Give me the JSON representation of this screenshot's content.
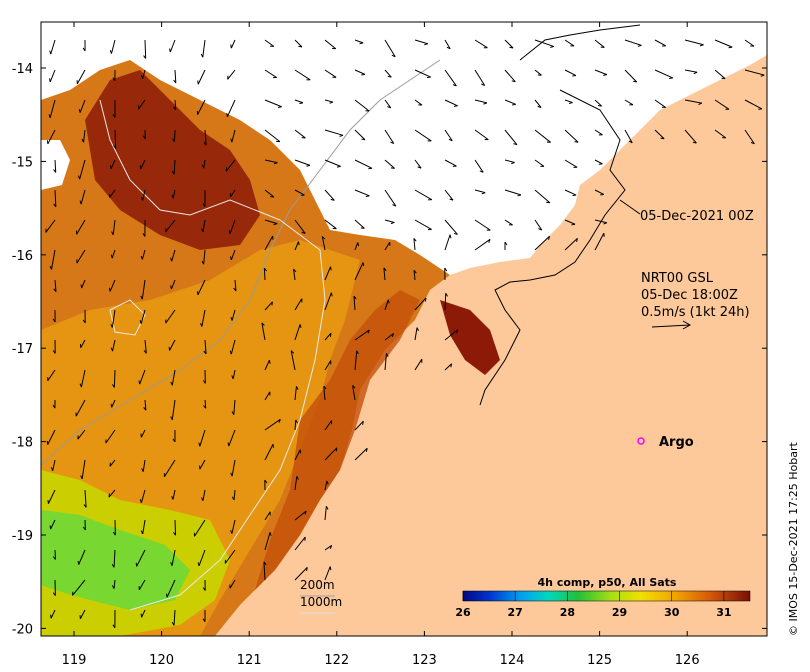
{
  "map": {
    "lon_ticks": [
      "119",
      "120",
      "121",
      "122",
      "123",
      "124",
      "125",
      "126"
    ],
    "lat_ticks": [
      "-14",
      "-15",
      "-16",
      "-17",
      "-18",
      "-19",
      "-20"
    ],
    "timestamp_label": "05-Dec-2021 00Z",
    "current_info": [
      "NRT00 GSL",
      "05-Dec 18:00Z",
      "0.5m/s (1kt 24h)"
    ],
    "argo_label": "Argo",
    "contour_legend": [
      "200m",
      "1000m"
    ],
    "credit": "© IMOS 15-Dec-2021 17:25 Hobart"
  },
  "colorbar": {
    "title": "4h comp, p50, All Sats",
    "ticks": [
      "26",
      "27",
      "28",
      "29",
      "30",
      "31"
    ],
    "range": [
      26,
      31.5
    ]
  },
  "colors": {
    "land": "#fdc89a",
    "warm": "#c8600c",
    "hot": "#7a1205",
    "mid": "#e39a10",
    "cool": "#c7d500",
    "green": "#5fd63a",
    "argo": "#ff00ff"
  }
}
